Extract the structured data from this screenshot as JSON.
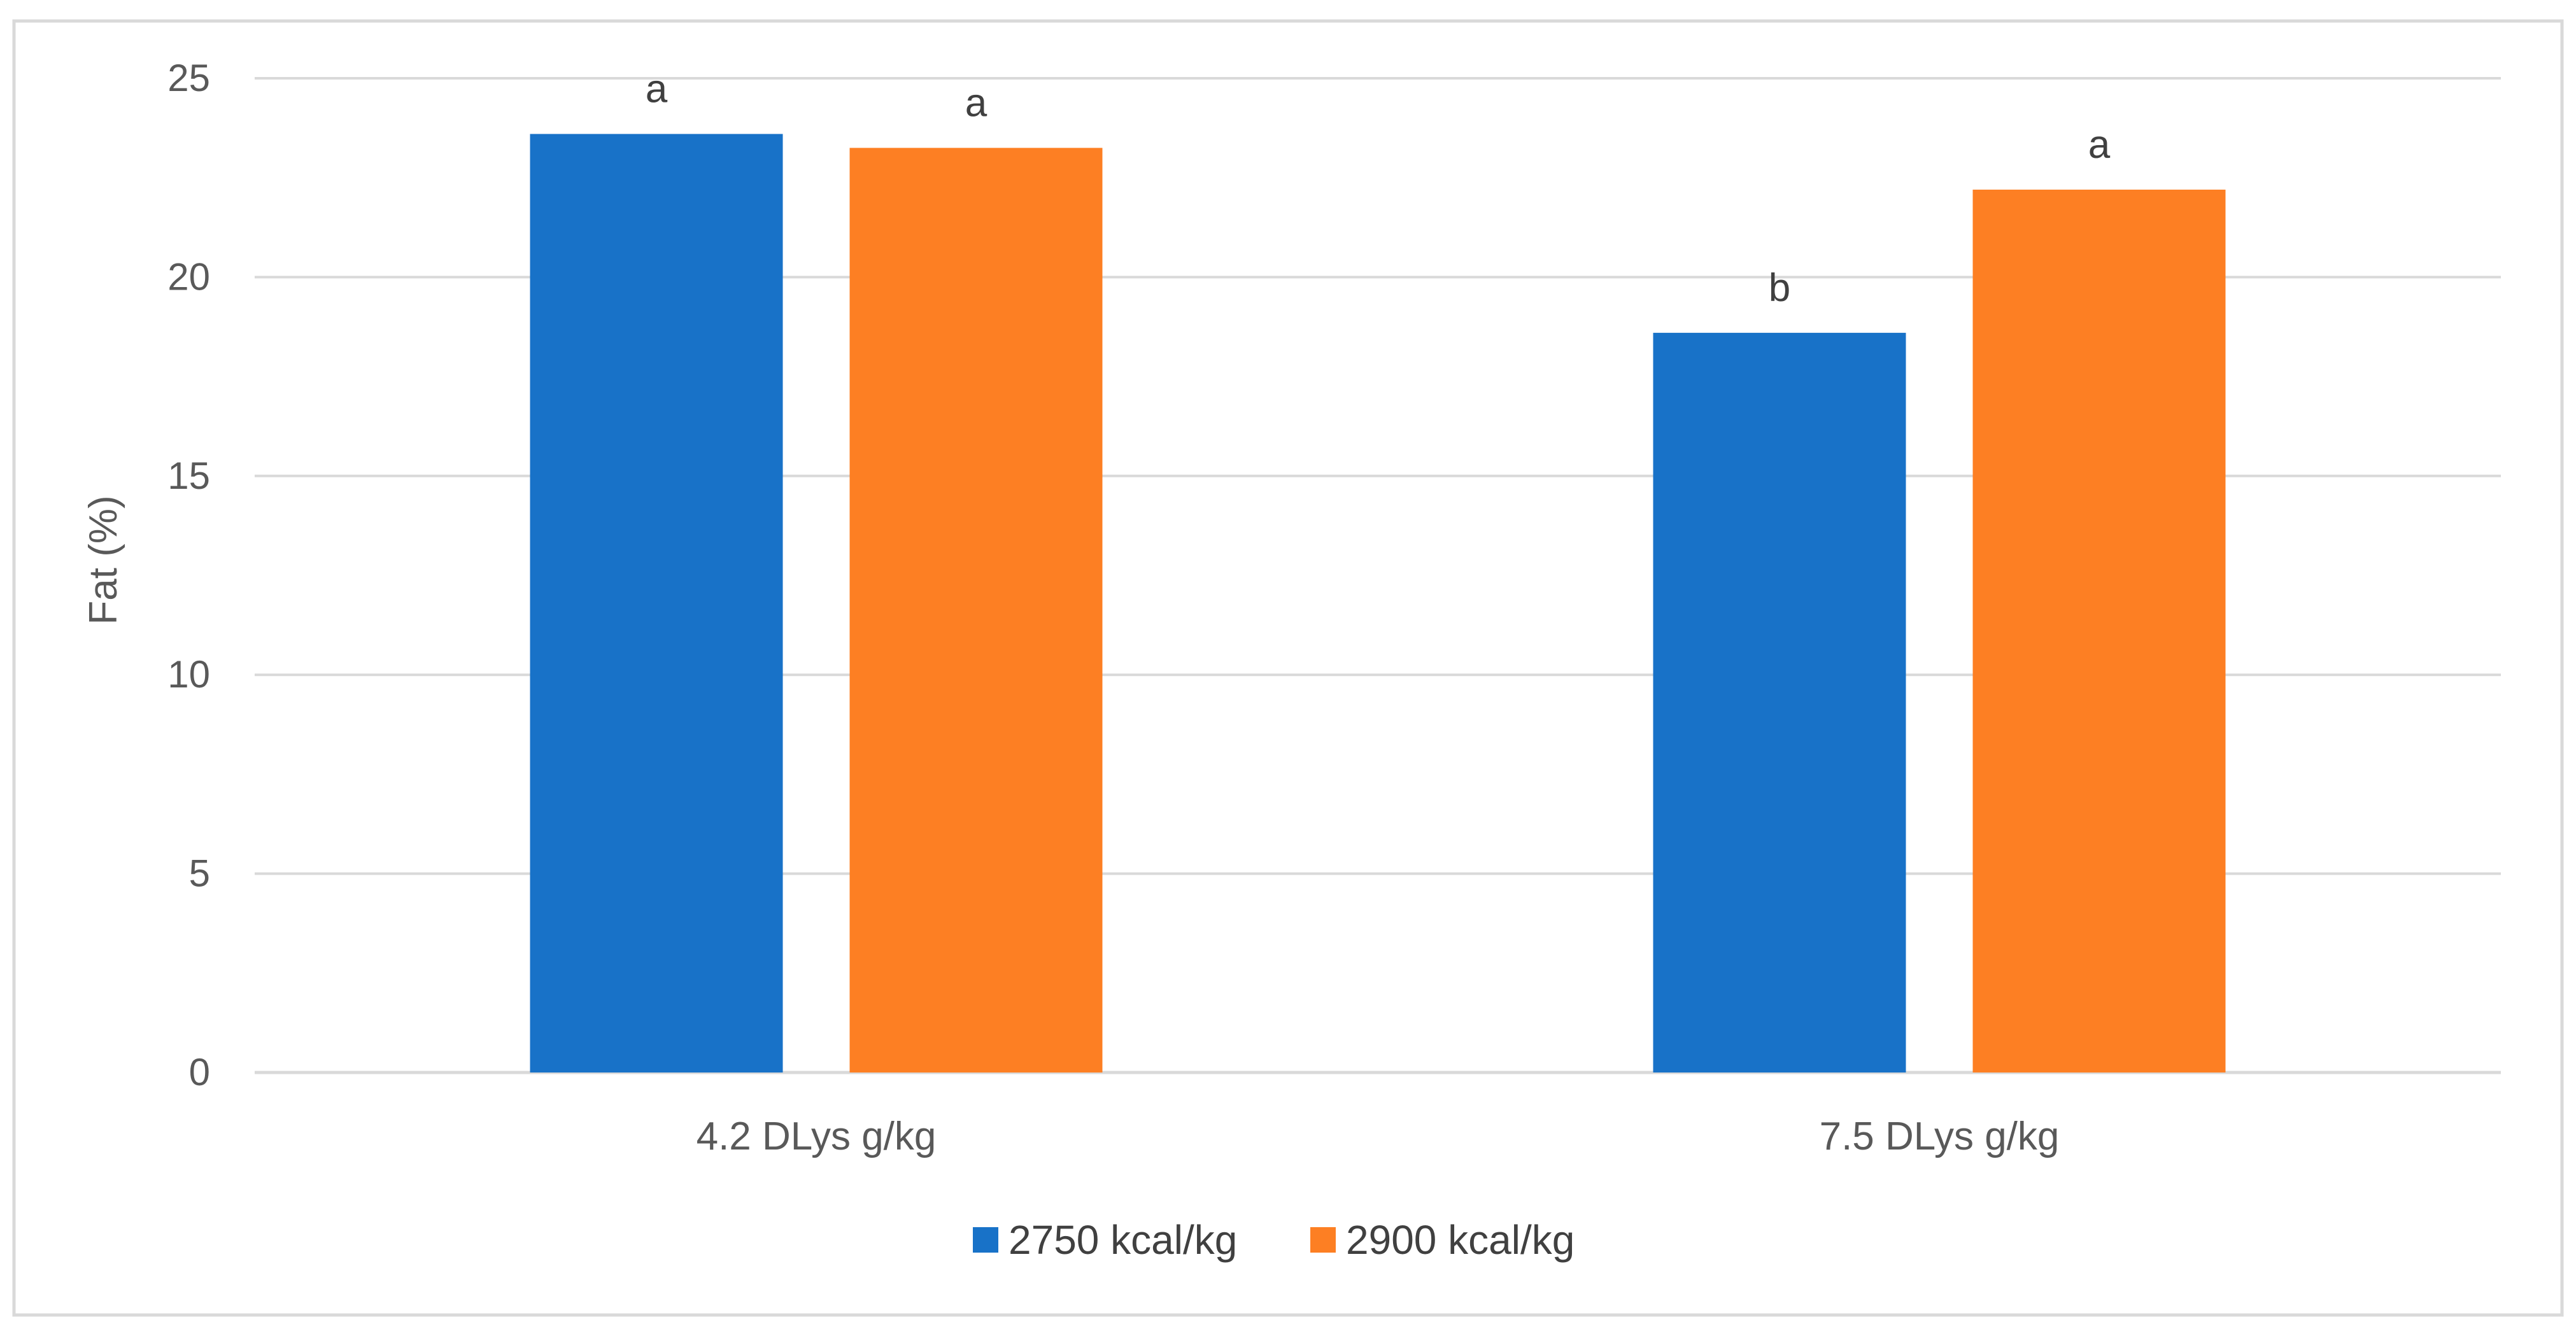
{
  "chart_data": {
    "type": "bar",
    "categories": [
      "4.2 DLys g/kg",
      "7.5 DLys g/kg"
    ],
    "series": [
      {
        "name": "2750 kcal/kg",
        "color": "#1872C8",
        "values": [
          23.6,
          18.6
        ],
        "labels": [
          "a",
          "b"
        ]
      },
      {
        "name": "2900 kcal/kg",
        "color": "#FD7F23",
        "values": [
          23.25,
          22.2
        ],
        "labels": [
          "a",
          "a"
        ]
      }
    ],
    "title": "",
    "xlabel": "",
    "ylabel": "Fat (%)",
    "ylim": [
      0,
      25
    ],
    "yticks": [
      0,
      5,
      10,
      15,
      20,
      25
    ],
    "grid": true,
    "legend_position": "bottom",
    "colors": {
      "grid": "#D9D9D9",
      "border": "#D9D9D9",
      "text": "#595959"
    }
  }
}
